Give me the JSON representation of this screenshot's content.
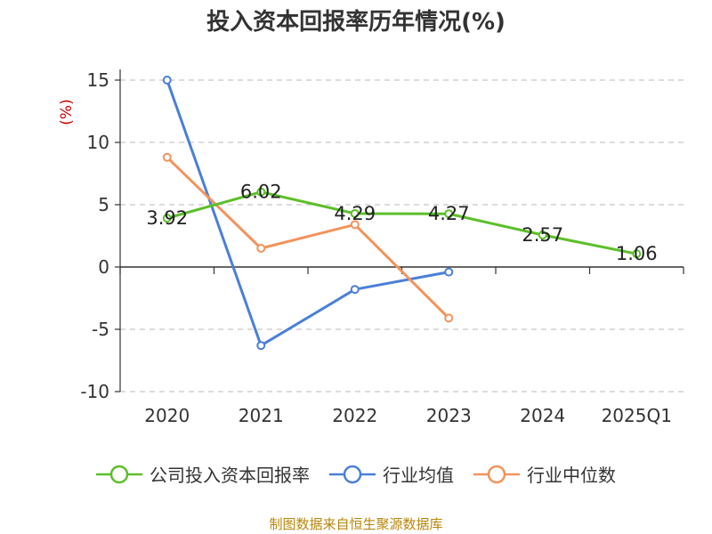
{
  "chart_data": {
    "type": "line",
    "title": "投入资本回报率历年情况(%)",
    "ylabel": "(%)",
    "xlabel": "",
    "categories": [
      "2020",
      "2021",
      "2022",
      "2023",
      "2024",
      "2025Q1"
    ],
    "ylim": [
      -10,
      15
    ],
    "yticks": [
      15,
      10,
      5,
      0,
      -5,
      -10
    ],
    "grid": true,
    "legend_position": "bottom",
    "series": [
      {
        "name": "公司投入资本回报率",
        "color": "#5cbf2a",
        "values": [
          3.92,
          6.02,
          4.29,
          4.27,
          2.57,
          1.06
        ],
        "labels": [
          "3.92",
          "6.02",
          "4.29",
          "4.27",
          "2.57",
          "1.06"
        ],
        "show_labels": true
      },
      {
        "name": "行业均值",
        "color": "#4a7fd8",
        "values": [
          15.0,
          -6.3,
          -1.8,
          -0.4,
          null,
          null
        ],
        "show_labels": false
      },
      {
        "name": "行业中位数",
        "color": "#f2935c",
        "values": [
          8.8,
          1.5,
          3.4,
          -4.1,
          null,
          null
        ],
        "show_labels": false
      }
    ]
  },
  "source": "制图数据来自恒生聚源数据库"
}
